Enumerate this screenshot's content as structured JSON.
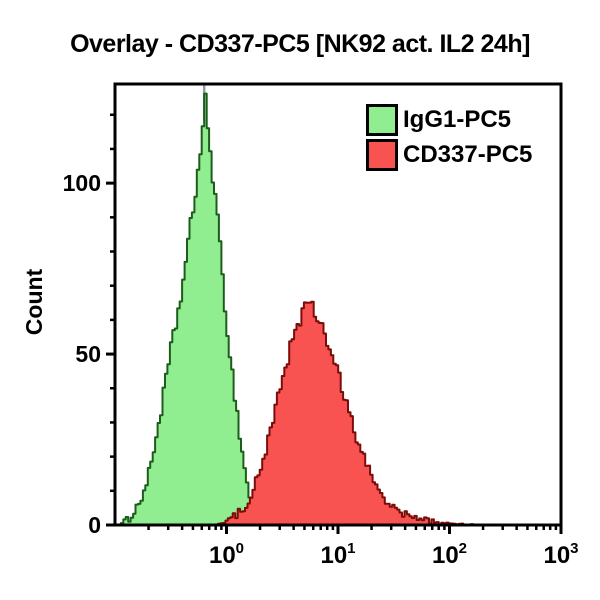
{
  "title": "Overlay - CD337-PC5 [NK92 act. IL2 24h]",
  "colors": {
    "background": "#ffffff",
    "axis": "#000000",
    "title_text": "#000000",
    "green_fill": "#90EE90",
    "green_edge": "#1E5C1E",
    "red_fill": "#F95351",
    "red_edge": "#7A0D0A",
    "peak_spike": "#9A9A9A"
  },
  "chart_data": {
    "type": "area",
    "subtype": "flow-cytometry-histogram-overlay",
    "title": "Overlay - CD337-PC5 [NK92 act. IL2 24h]",
    "xlabel": "",
    "ylabel": "Count",
    "x_scale": "log10",
    "xlim_log10": [
      -1,
      3
    ],
    "ylim": [
      0,
      129
    ],
    "y_major_ticks": [
      0,
      50,
      100
    ],
    "y_minor_step": 10,
    "x_major_tick_exponents": [
      0,
      1,
      2,
      3
    ],
    "x_tick_labels": [
      "10⁰",
      "10¹",
      "10²",
      "10³"
    ],
    "grid": false,
    "legend_position": "top-right-inside",
    "series": [
      {
        "name": "IgG1-PC5",
        "fill": "#90EE90",
        "edge": "#1E5C1E",
        "peak_x": 0.62,
        "peak_count": 124,
        "points": [
          [
            -0.97,
            0
          ],
          [
            -0.92,
            1
          ],
          [
            -0.88,
            2
          ],
          [
            -0.84,
            4
          ],
          [
            -0.8,
            6
          ],
          [
            -0.76,
            9
          ],
          [
            -0.72,
            13
          ],
          [
            -0.68,
            19
          ],
          [
            -0.64,
            26
          ],
          [
            -0.6,
            33
          ],
          [
            -0.56,
            41
          ],
          [
            -0.52,
            49
          ],
          [
            -0.48,
            56
          ],
          [
            -0.44,
            63
          ],
          [
            -0.4,
            71
          ],
          [
            -0.36,
            80
          ],
          [
            -0.32,
            90
          ],
          [
            -0.28,
            100
          ],
          [
            -0.25,
            108
          ],
          [
            -0.22,
            116
          ],
          [
            -0.2,
            123
          ],
          [
            -0.18,
            117
          ],
          [
            -0.16,
            111
          ],
          [
            -0.13,
            102
          ],
          [
            -0.1,
            92
          ],
          [
            -0.07,
            81
          ],
          [
            -0.04,
            70
          ],
          [
            -0.01,
            60
          ],
          [
            0.02,
            50
          ],
          [
            0.05,
            42
          ],
          [
            0.08,
            34
          ],
          [
            0.11,
            26
          ],
          [
            0.14,
            19
          ],
          [
            0.17,
            13
          ],
          [
            0.2,
            8
          ],
          [
            0.24,
            5
          ],
          [
            0.28,
            3
          ],
          [
            0.33,
            2
          ],
          [
            0.4,
            1
          ],
          [
            0.5,
            0.5
          ],
          [
            0.6,
            0
          ]
        ]
      },
      {
        "name": "CD337-PC5",
        "fill": "#F95351",
        "edge": "#7A0D0A",
        "peak_x": 5.2,
        "peak_count": 64,
        "points": [
          [
            -0.12,
            0
          ],
          [
            -0.05,
            0.5
          ],
          [
            0.02,
            1.5
          ],
          [
            0.08,
            3
          ],
          [
            0.14,
            5
          ],
          [
            0.2,
            8
          ],
          [
            0.26,
            13
          ],
          [
            0.32,
            19
          ],
          [
            0.38,
            27
          ],
          [
            0.44,
            35
          ],
          [
            0.5,
            44
          ],
          [
            0.56,
            52
          ],
          [
            0.62,
            58
          ],
          [
            0.66,
            61
          ],
          [
            0.7,
            64
          ],
          [
            0.74,
            64
          ],
          [
            0.78,
            62
          ],
          [
            0.83,
            59
          ],
          [
            0.88,
            55
          ],
          [
            0.93,
            50
          ],
          [
            0.98,
            45
          ],
          [
            1.03,
            39
          ],
          [
            1.08,
            34
          ],
          [
            1.13,
            28
          ],
          [
            1.18,
            23
          ],
          [
            1.23,
            19
          ],
          [
            1.28,
            15
          ],
          [
            1.33,
            12
          ],
          [
            1.38,
            9
          ],
          [
            1.43,
            7
          ],
          [
            1.48,
            5
          ],
          [
            1.53,
            4
          ],
          [
            1.6,
            3
          ],
          [
            1.67,
            2
          ],
          [
            1.75,
            1.5
          ],
          [
            1.85,
            1
          ],
          [
            1.95,
            0.5
          ],
          [
            2.1,
            0.3
          ],
          [
            2.25,
            0
          ]
        ]
      }
    ]
  }
}
